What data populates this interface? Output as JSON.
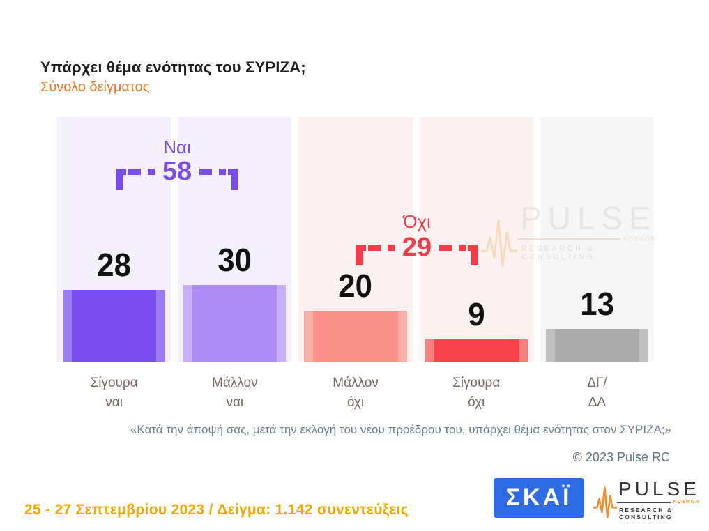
{
  "header": {
    "title": "Υπάρχει θέμα ενότητας του ΣΥΡΙΖΑ;",
    "subtitle": "Σύνολο δείγματος"
  },
  "chart_data": {
    "type": "bar",
    "title": "Υπάρχει θέμα ενότητας του ΣΥΡΙΖΑ;",
    "subtitle": "Σύνολο δείγματος",
    "categories": [
      "Σίγουρα ναι",
      "Μάλλον ναι",
      "Μάλλον όχι",
      "Σίγουρα όχι",
      "ΔΓ/ΔΑ"
    ],
    "categories_two_line": [
      "Σίγουρα\nναι",
      "Μάλλον\nναι",
      "Μάλλον\nόχι",
      "Σίγουρα\nόχι",
      "ΔΓ/\nΔΑ"
    ],
    "values": [
      28,
      30,
      20,
      9,
      13
    ],
    "groups": [
      {
        "label": "Ναι",
        "value": 58,
        "covers": [
          "Σίγουρα ναι",
          "Μάλλον ναι"
        ],
        "color": "#7a4ce8"
      },
      {
        "label": "Όχι",
        "value": 29,
        "covers": [
          "Μάλλον όχι",
          "Σίγουρα όχι"
        ],
        "color": "#f23c48"
      }
    ],
    "bar_colors": [
      {
        "inner": "#7a4df0",
        "outer": "#9a7cf0"
      },
      {
        "inner": "#ad8bf5",
        "outer": "#c9aef9"
      },
      {
        "inner": "#f9918b",
        "outer": "#fbafa6"
      },
      {
        "inner": "#f9444f",
        "outer": "#f8807f"
      },
      {
        "inner": "#ababab",
        "outer": "#c0c0c0"
      }
    ],
    "column_bg": [
      "#f4f1fc",
      "#f4f1fc",
      "#fdf1f1",
      "#fdf1f1",
      "#f7f6f7"
    ],
    "value_label_color": "#111111",
    "category_label_color": "#7d6963",
    "grid": false,
    "legend": false
  },
  "footnote": "«Κατά την άποψή σας, μετά την εκλογή του νέου προέδρου του, υπάρχει θέμα ενότητας στον ΣΥΡΙΖΑ;»",
  "copyright": "© 2023 Pulse RC",
  "footer": {
    "fieldwork": "25 - 27  Σεπτεμβρίου  2023  /  Δείγμα:  1.142 συνεντεύξεις",
    "skai_logo_text": "ΣΚΑΪ",
    "pulse_logo": {
      "name": "PULSE",
      "kosmon": "KOSMON",
      "tagline": "RESEARCH & CONSULTING"
    }
  },
  "watermark": {
    "name": "PULSE",
    "kosmon": "KOSMON",
    "tagline": "RESEARCH & CONSULTING"
  },
  "colors": {
    "subtitle_orange": "#e87a25",
    "fieldwork_amber": "#f3a900",
    "footnote_gray_blue": "#6b8292",
    "copyright_gray_blue": "#5e7488",
    "skai_blue": "#2e6be6",
    "pulse_orange": "#f08c2e",
    "yes_purple": "#7a4ce8",
    "no_red": "#f23c48",
    "title_black": "#1d1d1b"
  }
}
